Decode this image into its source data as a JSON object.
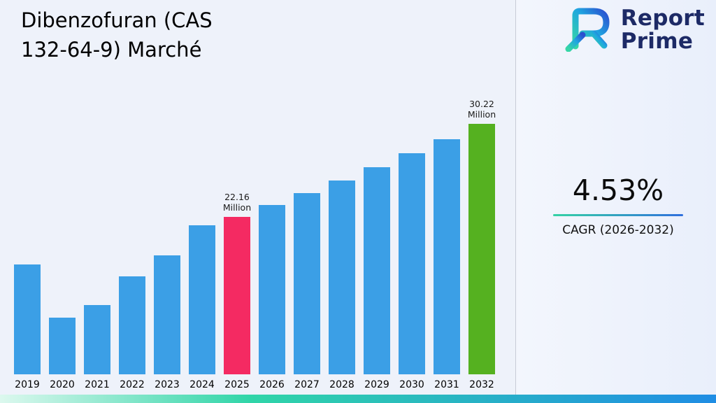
{
  "page": {
    "title": "Dibenzofuran (CAS 132-64-9) Marché"
  },
  "logo": {
    "brand_line1": "Report",
    "brand_line2": "Prime"
  },
  "stats": {
    "cagr_value": "4.53%",
    "cagr_label": "CAGR (2026-2032)"
  },
  "colors": {
    "bar_blue": "#3b9fe6",
    "highlight_pink": "#f42a62",
    "highlight_green": "#55b120",
    "accent_teal": "#35d2a5",
    "accent_blue": "#2f6fdd",
    "brand_navy": "#1d2a66",
    "background": "#eef2fa"
  },
  "chart_data": {
    "type": "bar",
    "title": "Dibenzofuran (CAS 132-64-9) Marché",
    "unit": "Million",
    "xlabel": "",
    "ylabel": "",
    "grid": false,
    "legend": "none",
    "baseline_value": 8.5,
    "ymax": 30.22,
    "categories": [
      "2019",
      "2020",
      "2021",
      "2022",
      "2023",
      "2024",
      "2025",
      "2026",
      "2027",
      "2028",
      "2029",
      "2030",
      "2031",
      "2032"
    ],
    "values": [
      18.0,
      13.4,
      14.5,
      17.0,
      18.8,
      21.4,
      22.16,
      23.16,
      24.21,
      25.31,
      26.45,
      27.65,
      28.91,
      30.22
    ],
    "labeled_points": [
      {
        "category": "2025",
        "lines": [
          "22.16",
          "Million"
        ]
      },
      {
        "category": "2032",
        "lines": [
          "30.22",
          "Million"
        ]
      }
    ],
    "bar_color": "#3b9fe6",
    "highlight_colors": {
      "2025": "#f42a62",
      "2032": "#55b120"
    }
  }
}
